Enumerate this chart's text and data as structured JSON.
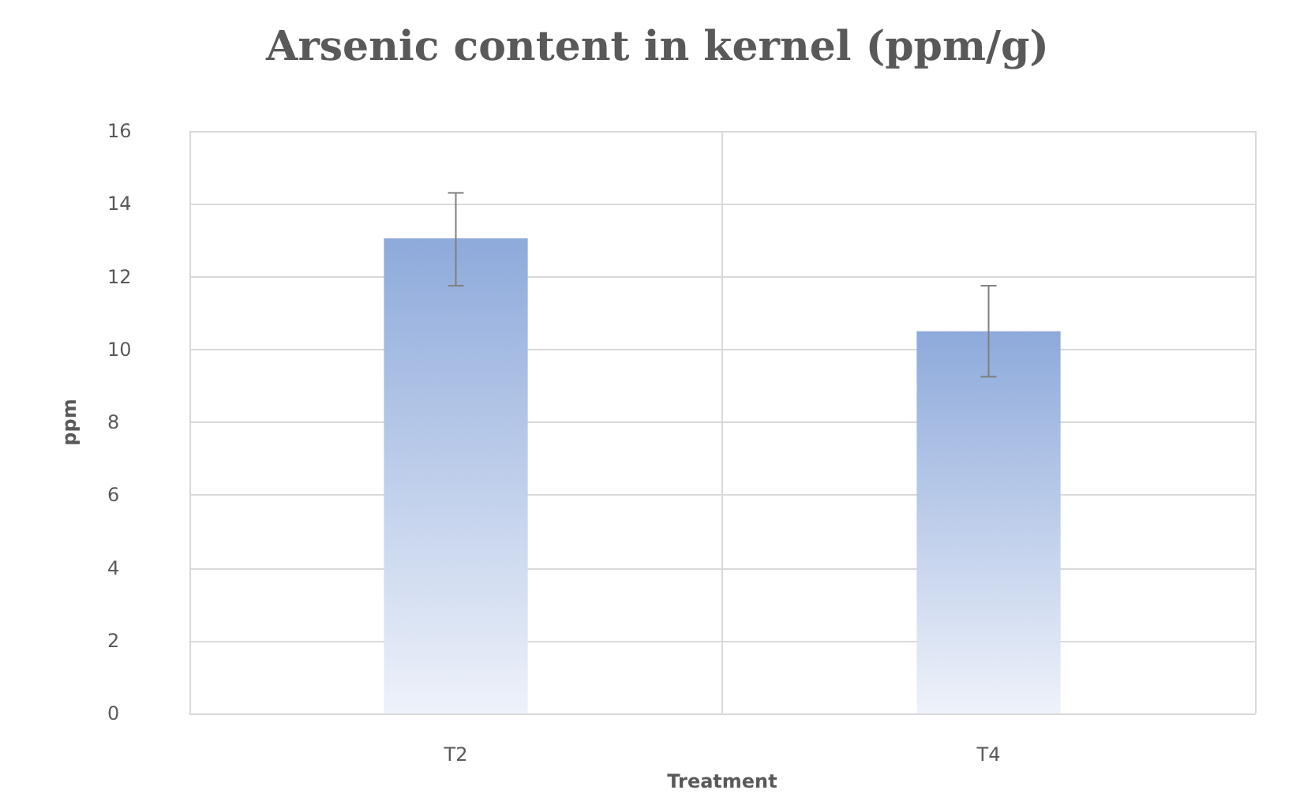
{
  "chart_data": {
    "type": "bar",
    "title": "Arsenic content in kernel (ppm/g)",
    "xlabel": "Treatment",
    "ylabel": "ppm",
    "categories": [
      "T2",
      "T4"
    ],
    "values": [
      13.05,
      10.5
    ],
    "errors": [
      [
        11.75,
        14.3
      ],
      [
        9.25,
        11.75
      ]
    ],
    "color": "#8eaadb",
    "ylim": [
      0,
      16
    ],
    "yticks": [
      0,
      2,
      4,
      6,
      8,
      10,
      12,
      14,
      16
    ],
    "grid": true
  }
}
